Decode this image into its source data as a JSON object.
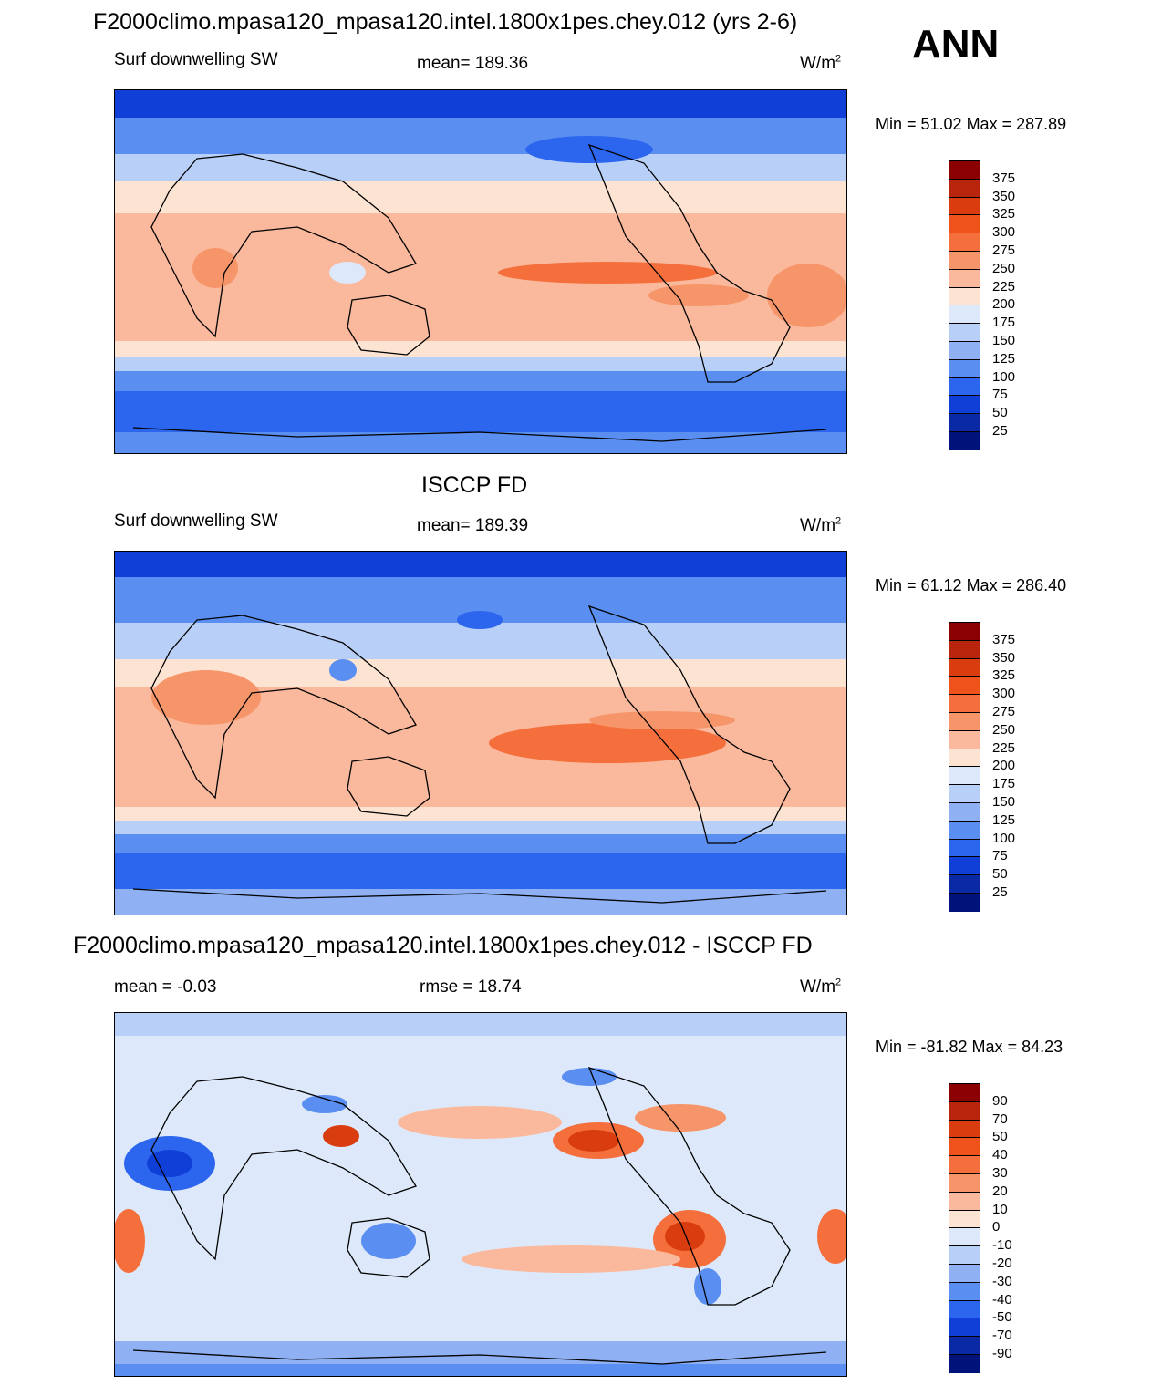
{
  "season": "ANN",
  "units_base": "W/m",
  "units_exp": "2",
  "panels": [
    {
      "title": "F2000climo.mpasa120_mpasa120.intel.1800x1pes.chey.012 (yrs 2-6)",
      "variable": "Surf downwelling SW",
      "stat_center": "mean= 189.36",
      "minmax": "Min =  51.02 Max = 287.89",
      "colorbar_labels": [
        "375",
        "350",
        "325",
        "300",
        "275",
        "250",
        "225",
        "200",
        "175",
        "150",
        "125",
        "100",
        "75",
        "50",
        "25"
      ]
    },
    {
      "title": "ISCCP FD",
      "variable": "Surf downwelling SW",
      "stat_center": "mean= 189.39",
      "minmax": "Min =  61.12 Max = 286.40",
      "colorbar_labels": [
        "375",
        "350",
        "325",
        "300",
        "275",
        "250",
        "225",
        "200",
        "175",
        "150",
        "125",
        "100",
        "75",
        "50",
        "25"
      ]
    },
    {
      "title": "F2000climo.mpasa120_mpasa120.intel.1800x1pes.chey.012 - ISCCP FD",
      "stat_left": "mean =  -0.03",
      "stat_center": "rmse =  18.74",
      "minmax": "Min = -81.82 Max =  84.23",
      "colorbar_labels": [
        "90",
        "70",
        "50",
        "40",
        "30",
        "20",
        "10",
        "0",
        "-10",
        "-20",
        "-30",
        "-40",
        "-50",
        "-70",
        "-90"
      ]
    }
  ],
  "colors": {
    "sequential_scale": [
      "#8b0000",
      "#b8240c",
      "#d93d0f",
      "#f0521c",
      "#f56f3d",
      "#f7956a",
      "#fab99c",
      "#fde3d2",
      "#dde9fa",
      "#b8d0f7",
      "#8fb1f3",
      "#5a8ef0",
      "#2c65ee",
      "#0f3fd6",
      "#0a2aa5",
      "#00137a"
    ],
    "diverging_scale": [
      "#8b0000",
      "#b8240c",
      "#d93d0f",
      "#f0521c",
      "#f56f3d",
      "#f7956a",
      "#fab99c",
      "#fde3d2",
      "#dde9fa",
      "#b8d0f7",
      "#8fb1f3",
      "#5a8ef0",
      "#2c65ee",
      "#0f3fd6",
      "#0a2aa5",
      "#00137a"
    ]
  }
}
